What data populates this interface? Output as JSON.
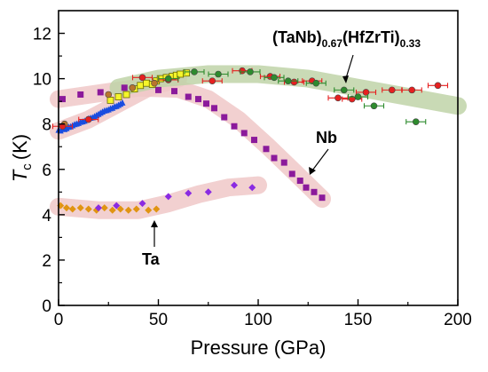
{
  "chart_data": {
    "type": "scatter",
    "xlabel": "Pressure (GPa)",
    "ylabel_main": "T",
    "ylabel_sub": "c",
    "ylabel_unit": "(K)",
    "xlim": [
      0,
      200
    ],
    "ylim": [
      0,
      13
    ],
    "x_ticks": [
      0,
      50,
      100,
      150,
      200
    ],
    "y_ticks": [
      0,
      2,
      4,
      6,
      8,
      10,
      12
    ],
    "grid": false,
    "colors": {
      "purple_square": "#8b1a9b",
      "blue_triangle": "#1a4de0",
      "yellow_square": "#f5f52a",
      "brown_circle": "#b8752e",
      "red_circle": "#e62020",
      "green_circle": "#2e8b2e",
      "orange_diamond": "#e09412",
      "violet_diamond": "#8a2be2",
      "band_pink": "#f0c8c8",
      "band_green": "#c0d4a8"
    },
    "annotations": [
      {
        "id": "hea",
        "parts": [
          "(TaNb)",
          "0.67",
          "(HfZrTi)",
          "0.33"
        ]
      },
      {
        "id": "nb",
        "text": "Nb"
      },
      {
        "id": "ta",
        "text": "Ta"
      }
    ],
    "bands": [
      {
        "name_key": "nb-trend",
        "color": "band_pink",
        "points": [
          [
            0,
            9.1
          ],
          [
            20,
            9.35
          ],
          [
            40,
            9.6
          ],
          [
            60,
            9.55
          ],
          [
            75,
            9.1
          ],
          [
            90,
            8.2
          ],
          [
            105,
            7.0
          ],
          [
            118,
            5.9
          ],
          [
            132,
            4.7
          ]
        ]
      },
      {
        "name_key": "hea-left-trend",
        "color": "band_pink",
        "points": [
          [
            0,
            7.7
          ],
          [
            15,
            8.2
          ],
          [
            30,
            8.9
          ],
          [
            45,
            9.6
          ],
          [
            60,
            10.0
          ]
        ]
      },
      {
        "name_key": "hea-right-trend",
        "color": "band_green",
        "points": [
          [
            30,
            9.6
          ],
          [
            50,
            10.0
          ],
          [
            75,
            10.2
          ],
          [
            100,
            10.2
          ],
          [
            125,
            10.0
          ],
          [
            150,
            9.6
          ],
          [
            175,
            9.2
          ],
          [
            200,
            8.8
          ]
        ]
      },
      {
        "name_key": "ta-trend",
        "color": "band_pink",
        "points": [
          [
            0,
            4.35
          ],
          [
            20,
            4.2
          ],
          [
            40,
            4.2
          ],
          [
            55,
            4.5
          ],
          [
            70,
            4.9
          ],
          [
            85,
            5.2
          ],
          [
            100,
            5.3
          ]
        ]
      }
    ],
    "series": [
      {
        "marker": "square",
        "color_key": "purple_square",
        "size": 7,
        "points": [
          [
            2,
            9.1
          ],
          [
            11,
            9.3
          ],
          [
            21,
            9.4
          ],
          [
            33,
            9.6
          ],
          [
            50,
            9.5
          ],
          [
            58,
            9.45
          ],
          [
            65,
            9.2
          ],
          [
            70,
            9.1
          ],
          [
            74,
            8.9
          ],
          [
            78,
            8.7
          ],
          [
            83,
            8.3
          ],
          [
            88,
            7.9
          ],
          [
            93,
            7.6
          ],
          [
            98,
            7.3
          ],
          [
            104,
            6.9
          ],
          [
            108,
            6.5
          ],
          [
            113,
            6.3
          ],
          [
            117,
            5.8
          ],
          [
            121,
            5.5
          ],
          [
            124,
            5.2
          ],
          [
            128,
            5.0
          ],
          [
            132,
            4.75
          ]
        ]
      },
      {
        "marker": "triangle",
        "color_key": "blue_triangle",
        "size": 7,
        "points": [
          [
            0,
            7.75
          ],
          [
            1,
            7.72
          ],
          [
            2,
            7.8
          ],
          [
            3,
            7.78
          ],
          [
            4,
            7.82
          ],
          [
            5,
            7.88
          ],
          [
            6,
            7.9
          ],
          [
            7,
            7.95
          ],
          [
            8,
            8.0
          ],
          [
            9,
            8.02
          ],
          [
            10,
            8.05
          ],
          [
            11,
            8.1
          ],
          [
            12,
            8.12
          ],
          [
            13,
            8.15
          ],
          [
            14,
            8.2
          ],
          [
            15,
            8.25
          ],
          [
            16,
            8.28
          ],
          [
            17,
            8.3
          ],
          [
            18,
            8.35
          ],
          [
            19,
            8.4
          ],
          [
            20,
            8.45
          ],
          [
            21,
            8.5
          ],
          [
            22,
            8.55
          ],
          [
            23,
            8.6
          ],
          [
            24,
            8.62
          ],
          [
            25,
            8.65
          ],
          [
            26,
            8.7
          ],
          [
            27,
            8.72
          ],
          [
            28,
            8.78
          ],
          [
            29,
            8.8
          ],
          [
            30,
            8.85
          ],
          [
            31,
            8.9
          ],
          [
            32,
            8.95
          ]
        ]
      },
      {
        "marker": "square",
        "color_key": "yellow_square",
        "size": 7,
        "points": [
          [
            26,
            9.05
          ],
          [
            30,
            9.2
          ],
          [
            34,
            9.3
          ],
          [
            38,
            9.55
          ],
          [
            41,
            9.7
          ],
          [
            44,
            9.8
          ],
          [
            47,
            9.75
          ],
          [
            49,
            9.9
          ],
          [
            51,
            10.0
          ],
          [
            54,
            10.05
          ],
          [
            57,
            10.1
          ],
          [
            59,
            10.15
          ],
          [
            61,
            10.2
          ],
          [
            64,
            10.25
          ]
        ]
      },
      {
        "marker": "circle",
        "color_key": "brown_circle",
        "size": 7,
        "points": [
          [
            3,
            8.0
          ],
          [
            25,
            9.3
          ],
          [
            37,
            9.6
          ],
          [
            48,
            9.8
          ]
        ]
      },
      {
        "marker": "circle",
        "color_key": "red_circle",
        "size": 7,
        "errorbars": true,
        "points": [
          [
            2,
            7.9
          ],
          [
            15,
            8.2
          ],
          [
            42,
            10.05
          ],
          [
            55,
            9.95
          ],
          [
            77,
            9.9
          ],
          [
            92,
            10.35
          ],
          [
            106,
            10.1
          ],
          [
            118,
            9.85
          ],
          [
            127,
            9.9
          ],
          [
            140,
            9.15
          ],
          [
            147,
            9.1
          ],
          [
            154,
            9.4
          ],
          [
            167,
            9.5
          ],
          [
            177,
            9.5
          ],
          [
            190,
            9.7
          ]
        ]
      },
      {
        "marker": "circle",
        "color_key": "green_circle",
        "size": 7,
        "errorbars": true,
        "points": [
          [
            55,
            10.0
          ],
          [
            68,
            10.3
          ],
          [
            80,
            10.2
          ],
          [
            96,
            10.3
          ],
          [
            108,
            10.05
          ],
          [
            115,
            9.9
          ],
          [
            129,
            9.8
          ],
          [
            143,
            9.5
          ],
          [
            150,
            9.2
          ],
          [
            158,
            8.8
          ],
          [
            179,
            8.1
          ]
        ]
      },
      {
        "marker": "diamond",
        "color_key": "orange_diamond",
        "size": 8,
        "points": [
          [
            1,
            4.4
          ],
          [
            4,
            4.3
          ],
          [
            7,
            4.25
          ],
          [
            11,
            4.3
          ],
          [
            15,
            4.25
          ],
          [
            19,
            4.2
          ],
          [
            23,
            4.3
          ],
          [
            27,
            4.2
          ],
          [
            31,
            4.25
          ],
          [
            35,
            4.2
          ],
          [
            39,
            4.25
          ],
          [
            45,
            4.2
          ],
          [
            49,
            4.25
          ]
        ]
      },
      {
        "marker": "diamond",
        "color_key": "violet_diamond",
        "size": 8,
        "points": [
          [
            20,
            4.3
          ],
          [
            29,
            4.4
          ],
          [
            42,
            4.5
          ],
          [
            55,
            4.8
          ],
          [
            65,
            4.95
          ],
          [
            75,
            5.0
          ],
          [
            88,
            5.3
          ],
          [
            97,
            5.2
          ]
        ]
      }
    ]
  }
}
